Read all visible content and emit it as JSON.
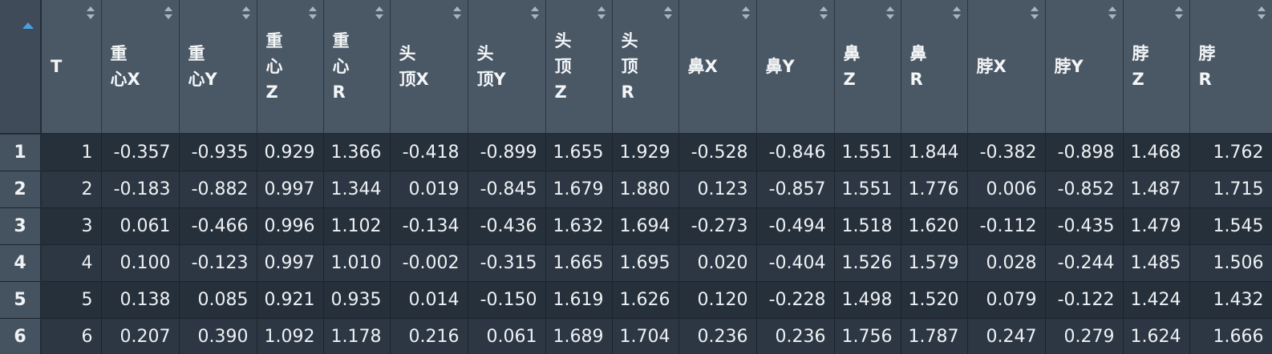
{
  "table": {
    "columns": [
      "T",
      "重\n心X",
      "重\n心Y",
      "重\n心\nZ",
      "重\n心\nR",
      "头\n顶X",
      "头\n顶Y",
      "头\n顶\nZ",
      "头\n顶\nR",
      "鼻X",
      "鼻Y",
      "鼻\nZ",
      "鼻\nR",
      "脖X",
      "脖Y",
      "脖\nZ",
      "脖\nR"
    ],
    "rows": [
      {
        "index": "1",
        "cells": [
          "1",
          "-0.357",
          "-0.935",
          "0.929",
          "1.366",
          "-0.418",
          "-0.899",
          "1.655",
          "1.929",
          "-0.528",
          "-0.846",
          "1.551",
          "1.844",
          "-0.382",
          "-0.898",
          "1.468",
          "1.762"
        ]
      },
      {
        "index": "2",
        "cells": [
          "2",
          "-0.183",
          "-0.882",
          "0.997",
          "1.344",
          "0.019",
          "-0.845",
          "1.679",
          "1.880",
          "0.123",
          "-0.857",
          "1.551",
          "1.776",
          "0.006",
          "-0.852",
          "1.487",
          "1.715"
        ]
      },
      {
        "index": "3",
        "cells": [
          "3",
          "0.061",
          "-0.466",
          "0.996",
          "1.102",
          "-0.134",
          "-0.436",
          "1.632",
          "1.694",
          "-0.273",
          "-0.494",
          "1.518",
          "1.620",
          "-0.112",
          "-0.435",
          "1.479",
          "1.545"
        ]
      },
      {
        "index": "4",
        "cells": [
          "4",
          "0.100",
          "-0.123",
          "0.997",
          "1.010",
          "-0.002",
          "-0.315",
          "1.665",
          "1.695",
          "0.020",
          "-0.404",
          "1.526",
          "1.579",
          "0.028",
          "-0.244",
          "1.485",
          "1.506"
        ]
      },
      {
        "index": "5",
        "cells": [
          "5",
          "0.138",
          "0.085",
          "0.921",
          "0.935",
          "0.014",
          "-0.150",
          "1.619",
          "1.626",
          "0.120",
          "-0.228",
          "1.498",
          "1.520",
          "0.079",
          "-0.122",
          "1.424",
          "1.432"
        ]
      },
      {
        "index": "6",
        "cells": [
          "6",
          "0.207",
          "0.390",
          "1.092",
          "1.178",
          "0.216",
          "0.061",
          "1.689",
          "1.704",
          "0.236",
          "0.236",
          "1.756",
          "1.787",
          "0.247",
          "0.279",
          "1.624",
          "1.666"
        ]
      }
    ]
  },
  "colors": {
    "header_bg": "#4a5765",
    "index_bg": "#45525f",
    "row_bg_odd": "#26303b",
    "row_bg_even": "#2c3743",
    "sort_active": "#4a9fe0"
  }
}
